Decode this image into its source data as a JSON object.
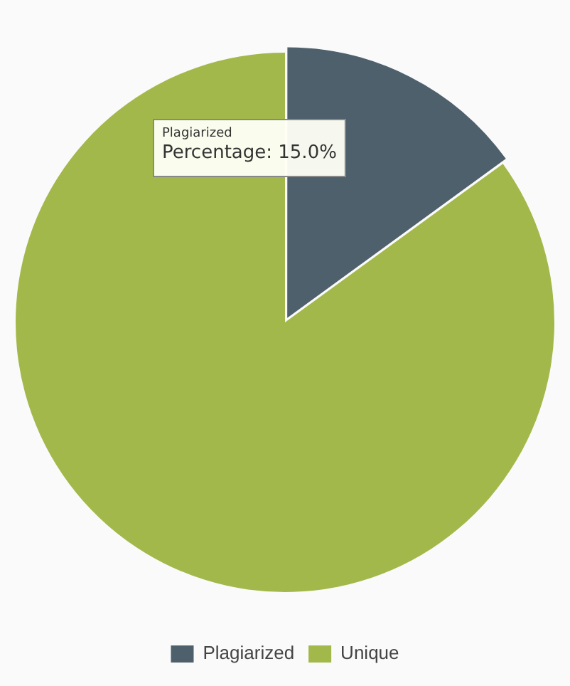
{
  "chart_data": {
    "type": "pie",
    "categories": [
      "Plagiarized",
      "Unique"
    ],
    "values": [
      15,
      85
    ],
    "colors": [
      "#4e606c",
      "#a3b84a"
    ],
    "legend": "bottom",
    "annotations": [
      "Plagiarized",
      "Percentage: 15.0%"
    ]
  }
}
